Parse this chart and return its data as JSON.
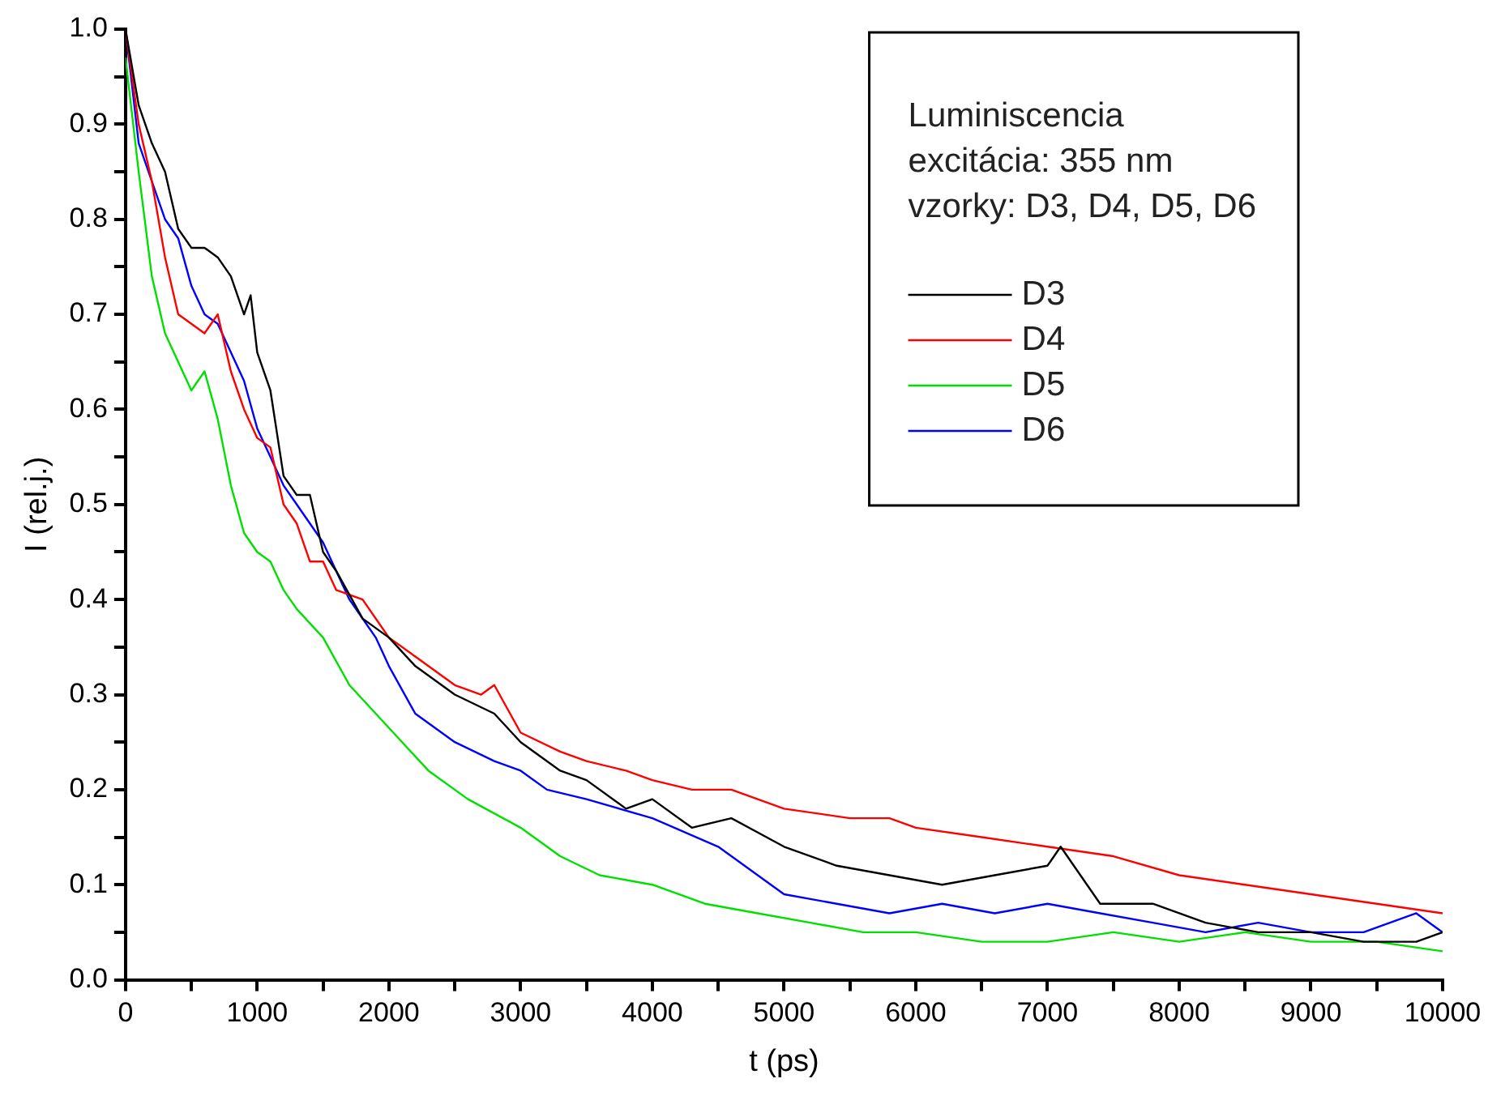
{
  "chart_data": {
    "type": "line",
    "xlabel": "t (ps)",
    "ylabel": "I (rel.j.)",
    "legend_title": "Luminiscencia\nexcitácia: 355 nm\nvzorky: D3, D4, D5, D6",
    "legend": "top right",
    "grid": false,
    "marker": "none",
    "line_style": "solid",
    "xlim": [
      0,
      10000
    ],
    "xticks": [
      0,
      1000,
      2000,
      3000,
      4000,
      5000,
      6000,
      7000,
      8000,
      9000,
      10000
    ],
    "ylim": [
      0,
      1
    ],
    "yticks": [
      {
        "value": 0,
        "label": "0.0"
      },
      0.1,
      0.2,
      0.3,
      0.4,
      0.5,
      0.6,
      0.7,
      0.8,
      0.9,
      {
        "value": 1,
        "label": "1.0"
      }
    ],
    "series": [
      {
        "name": "D3",
        "color": "#000000",
        "x": [
          0,
          100,
          200,
          300,
          400,
          500,
          600,
          700,
          800,
          900,
          950,
          1000,
          1100,
          1200,
          1300,
          1400,
          1450,
          1500,
          1600,
          1800,
          2000,
          2200,
          2500,
          2800,
          3000,
          3300,
          3500,
          3800,
          4000,
          4300,
          4600,
          5000,
          5400,
          5800,
          6200,
          6600,
          7000,
          7100,
          7400,
          7800,
          8200,
          8600,
          9000,
          9400,
          9800,
          10000
        ],
        "values": [
          1.0,
          0.92,
          0.88,
          0.85,
          0.79,
          0.77,
          0.77,
          0.76,
          0.74,
          0.7,
          0.72,
          0.66,
          0.62,
          0.53,
          0.51,
          0.51,
          0.48,
          0.45,
          0.43,
          0.38,
          0.36,
          0.33,
          0.3,
          0.28,
          0.25,
          0.22,
          0.21,
          0.18,
          0.19,
          0.16,
          0.17,
          0.14,
          0.12,
          0.11,
          0.1,
          0.11,
          0.12,
          0.14,
          0.08,
          0.08,
          0.06,
          0.05,
          0.05,
          0.04,
          0.04,
          0.05
        ]
      },
      {
        "name": "D4",
        "color": "#ff0000",
        "x": [
          0,
          100,
          200,
          300,
          400,
          500,
          600,
          700,
          800,
          900,
          1000,
          1100,
          1200,
          1300,
          1400,
          1500,
          1600,
          1800,
          2000,
          2200,
          2500,
          2700,
          2800,
          3000,
          3300,
          3500,
          3800,
          4000,
          4300,
          4600,
          5000,
          5500,
          5800,
          6000,
          6500,
          7000,
          7500,
          8000,
          8500,
          9000,
          9500,
          10000
        ],
        "values": [
          1.0,
          0.9,
          0.84,
          0.76,
          0.7,
          0.69,
          0.68,
          0.7,
          0.64,
          0.6,
          0.57,
          0.56,
          0.5,
          0.48,
          0.44,
          0.44,
          0.41,
          0.4,
          0.36,
          0.34,
          0.31,
          0.3,
          0.31,
          0.26,
          0.24,
          0.23,
          0.22,
          0.21,
          0.2,
          0.2,
          0.18,
          0.17,
          0.17,
          0.16,
          0.15,
          0.14,
          0.13,
          0.11,
          0.1,
          0.09,
          0.08,
          0.07
        ]
      },
      {
        "name": "D5",
        "color": "#00e000",
        "x": [
          0,
          100,
          200,
          300,
          400,
          500,
          600,
          700,
          800,
          900,
          1000,
          1100,
          1200,
          1300,
          1500,
          1700,
          1900,
          2100,
          2300,
          2600,
          3000,
          3300,
          3600,
          4000,
          4400,
          4800,
          5200,
          5600,
          6000,
          6500,
          7000,
          7500,
          8000,
          8500,
          9000,
          9500,
          10000
        ],
        "values": [
          0.97,
          0.85,
          0.74,
          0.68,
          0.65,
          0.62,
          0.64,
          0.59,
          0.52,
          0.47,
          0.45,
          0.44,
          0.41,
          0.39,
          0.36,
          0.31,
          0.28,
          0.25,
          0.22,
          0.19,
          0.16,
          0.13,
          0.11,
          0.1,
          0.08,
          0.07,
          0.06,
          0.05,
          0.05,
          0.04,
          0.04,
          0.05,
          0.04,
          0.05,
          0.04,
          0.04,
          0.03
        ]
      },
      {
        "name": "D6",
        "color": "#0000ff",
        "x": [
          0,
          100,
          200,
          300,
          400,
          500,
          600,
          700,
          800,
          900,
          1000,
          1100,
          1200,
          1300,
          1500,
          1700,
          1900,
          2000,
          2200,
          2500,
          2800,
          3000,
          3200,
          3500,
          4000,
          4500,
          4800,
          5000,
          5400,
          5800,
          6200,
          6600,
          7000,
          7400,
          7800,
          8200,
          8600,
          9000,
          9400,
          9800,
          10000
        ],
        "values": [
          1.0,
          0.88,
          0.84,
          0.8,
          0.78,
          0.73,
          0.7,
          0.69,
          0.66,
          0.63,
          0.58,
          0.55,
          0.52,
          0.5,
          0.46,
          0.4,
          0.36,
          0.33,
          0.28,
          0.25,
          0.23,
          0.22,
          0.2,
          0.19,
          0.17,
          0.14,
          0.11,
          0.09,
          0.08,
          0.07,
          0.08,
          0.07,
          0.08,
          0.07,
          0.06,
          0.05,
          0.06,
          0.05,
          0.05,
          0.07,
          0.05
        ]
      }
    ]
  }
}
